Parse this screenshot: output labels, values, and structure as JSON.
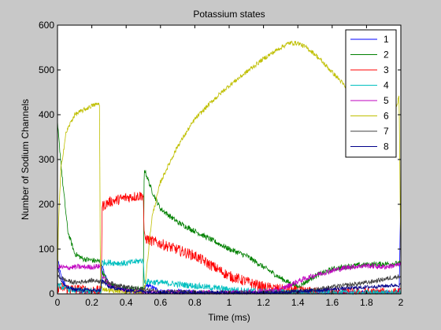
{
  "chart_data": {
    "type": "line",
    "title": "Potassium states",
    "xlabel": "Time (ms)",
    "ylabel": "Number of Sodium Channels",
    "xlim": [
      0,
      2
    ],
    "ylim": [
      0,
      600
    ],
    "xticks": [
      0,
      0.2,
      0.4,
      0.6,
      0.8,
      1,
      1.2,
      1.4,
      1.6,
      1.8,
      2
    ],
    "xtick_labels": [
      "0",
      "0.2",
      "0.4",
      "0.6",
      "0.8",
      "1",
      "1.2",
      "1.4",
      "1.6",
      "1.8",
      "2"
    ],
    "yticks": [
      0,
      100,
      200,
      300,
      400,
      500,
      600
    ],
    "ytick_labels": [
      "0",
      "100",
      "200",
      "300",
      "400",
      "500",
      "600"
    ],
    "grid": false,
    "legend_position": "top-right",
    "series": [
      {
        "name": "1",
        "color": "#0000ff",
        "noise": 5,
        "x": [
          0,
          0.02,
          0.05,
          0.1,
          0.2,
          0.25,
          0.26,
          0.3,
          0.4,
          0.5,
          0.52,
          0.6,
          0.8,
          1.0,
          1.4,
          1.8,
          1.99,
          2.0
        ],
        "y": [
          80,
          40,
          15,
          8,
          5,
          4,
          60,
          20,
          8,
          5,
          20,
          6,
          4,
          2,
          2,
          3,
          3,
          220
        ]
      },
      {
        "name": "2",
        "color": "#008000",
        "noise": 6,
        "x": [
          0,
          0.03,
          0.06,
          0.1,
          0.15,
          0.2,
          0.25,
          0.26,
          0.3,
          0.4,
          0.5,
          0.505,
          0.55,
          0.6,
          0.7,
          0.8,
          0.9,
          1.0,
          1.1,
          1.2,
          1.3,
          1.4,
          1.5,
          1.6,
          1.7,
          1.8,
          1.9,
          2.0
        ],
        "y": [
          380,
          250,
          140,
          90,
          78,
          75,
          72,
          50,
          20,
          12,
          10,
          280,
          230,
          190,
          160,
          140,
          120,
          100,
          85,
          60,
          35,
          15,
          40,
          55,
          62,
          65,
          67,
          68
        ]
      },
      {
        "name": "3",
        "color": "#ff0000",
        "noise": 12,
        "x": [
          0,
          0.05,
          0.1,
          0.2,
          0.255,
          0.26,
          0.3,
          0.4,
          0.5,
          0.505,
          0.55,
          0.6,
          0.8,
          1.0,
          1.2,
          1.4,
          1.6,
          1.8,
          2.0
        ],
        "y": [
          15,
          12,
          10,
          8,
          6,
          195,
          205,
          215,
          220,
          125,
          118,
          112,
          85,
          40,
          15,
          5,
          3,
          2,
          2
        ]
      },
      {
        "name": "4",
        "color": "#00bfbf",
        "noise": 7,
        "x": [
          0,
          0.05,
          0.1,
          0.2,
          0.255,
          0.26,
          0.3,
          0.4,
          0.5,
          0.505,
          0.6,
          0.8,
          1.0,
          1.2,
          1.4,
          1.6,
          1.8,
          2.0
        ],
        "y": [
          20,
          12,
          8,
          6,
          5,
          70,
          70,
          68,
          75,
          28,
          25,
          18,
          10,
          5,
          3,
          2,
          2,
          2
        ]
      },
      {
        "name": "5",
        "color": "#bf00bf",
        "noise": 6,
        "x": [
          0,
          0.02,
          0.05,
          0.1,
          0.2,
          0.25,
          0.26,
          0.3,
          0.4,
          0.5,
          0.6,
          0.8,
          1.0,
          1.2,
          1.3,
          1.4,
          1.5,
          1.6,
          1.7,
          1.8,
          1.9,
          2.0
        ],
        "y": [
          60,
          60,
          58,
          60,
          60,
          62,
          40,
          20,
          8,
          5,
          3,
          2,
          2,
          5,
          10,
          28,
          42,
          52,
          60,
          63,
          60,
          65
        ]
      },
      {
        "name": "6",
        "color": "#bfbf00",
        "noise": 5,
        "x": [
          0,
          0.005,
          0.02,
          0.05,
          0.08,
          0.1,
          0.15,
          0.2,
          0.245,
          0.25,
          0.26,
          0.3,
          0.4,
          0.5,
          0.51,
          0.55,
          0.6,
          0.7,
          0.8,
          0.9,
          1.0,
          1.1,
          1.2,
          1.3,
          1.35,
          1.4,
          1.45,
          1.5,
          1.55,
          1.6,
          1.65,
          1.7,
          1.75,
          1.8,
          1.85,
          1.9,
          1.95,
          1.99,
          2.0
        ],
        "y": [
          10,
          150,
          280,
          360,
          385,
          400,
          410,
          420,
          425,
          15,
          12,
          8,
          5,
          3,
          20,
          170,
          250,
          330,
          390,
          430,
          465,
          495,
          525,
          550,
          560,
          560,
          550,
          535,
          515,
          495,
          475,
          450,
          430,
          410,
          395,
          380,
          390,
          440,
          60
        ]
      },
      {
        "name": "7",
        "color": "#404040",
        "noise": 5,
        "x": [
          0,
          0.05,
          0.1,
          0.2,
          0.25,
          0.3,
          0.4,
          0.5,
          0.6,
          0.8,
          1.0,
          1.2,
          1.4,
          1.6,
          1.8,
          2.0
        ],
        "y": [
          40,
          30,
          25,
          30,
          28,
          25,
          15,
          10,
          5,
          3,
          2,
          2,
          5,
          15,
          25,
          40
        ]
      },
      {
        "name": "8",
        "color": "#00008b",
        "noise": 4,
        "x": [
          0,
          0.02,
          0.05,
          0.1,
          0.2,
          0.25,
          0.26,
          0.3,
          0.4,
          0.5,
          0.6,
          0.8,
          1.0,
          1.2,
          1.4,
          1.6,
          1.8,
          2.0
        ],
        "y": [
          60,
          30,
          15,
          10,
          8,
          8,
          30,
          15,
          8,
          5,
          3,
          2,
          2,
          2,
          5,
          10,
          15,
          20
        ]
      }
    ]
  }
}
